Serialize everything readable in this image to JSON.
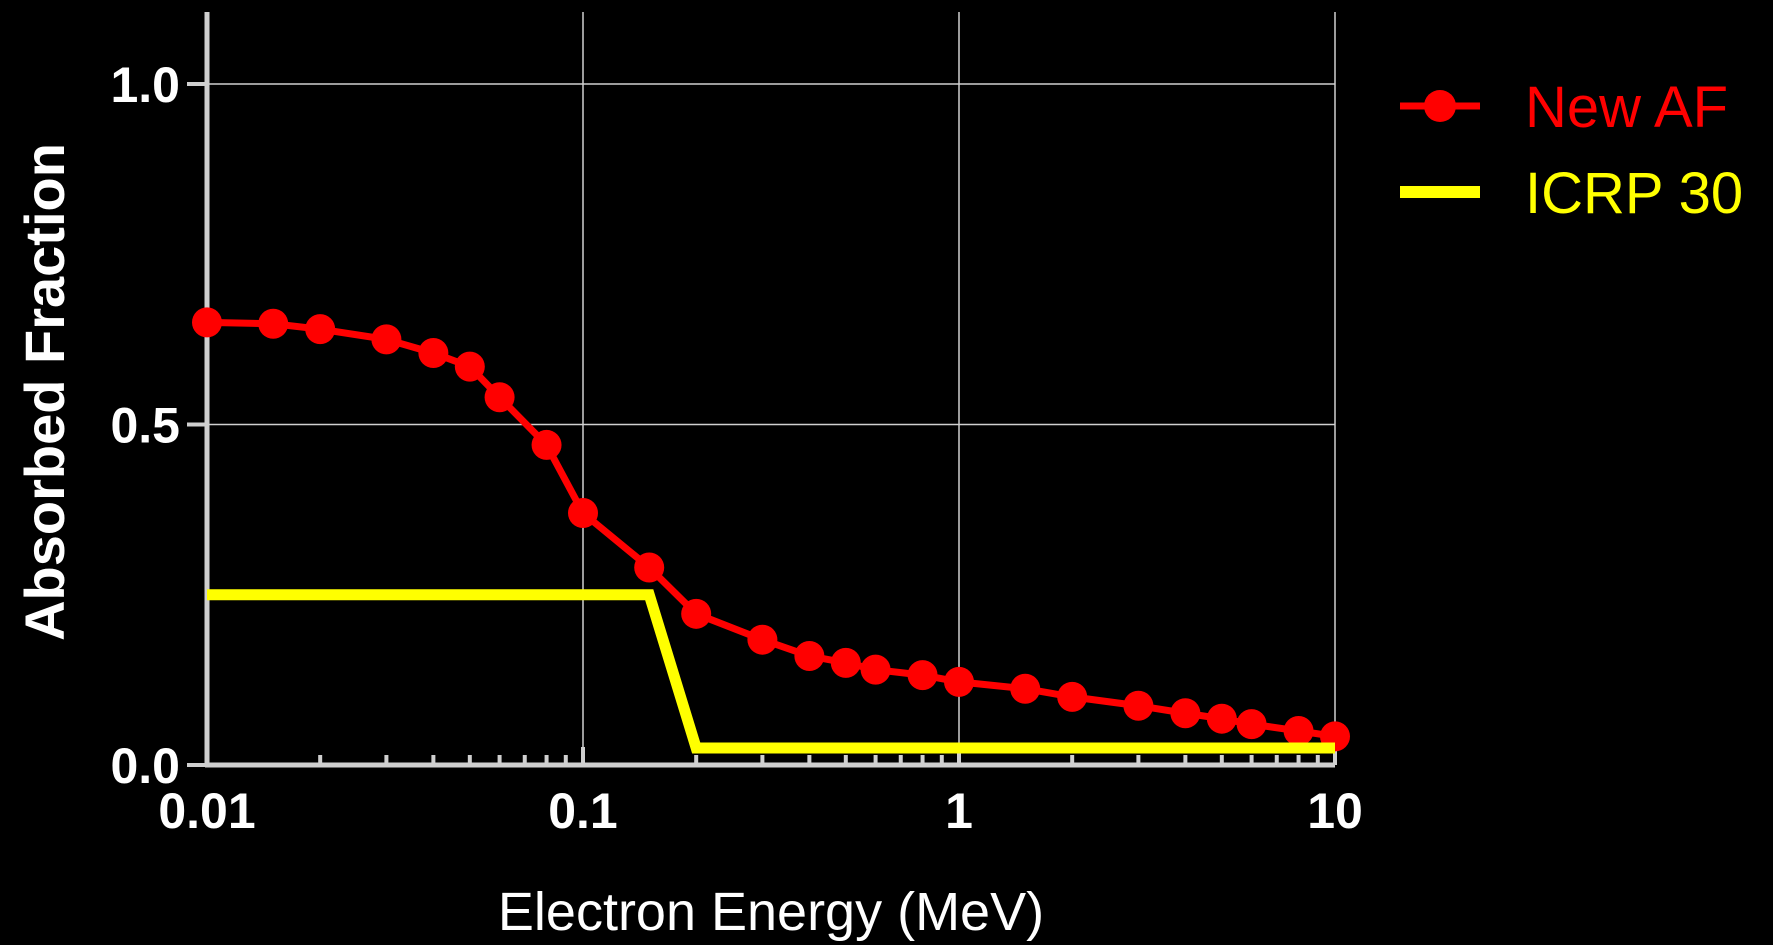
{
  "chart_data": {
    "type": "line",
    "xlabel": "Electron Energy (MeV)",
    "ylabel": "Absorbed Fraction",
    "x_scale": "log",
    "xlim": [
      0.01,
      10
    ],
    "ylim": [
      0.0,
      1.1
    ],
    "x_ticks": [
      "0.01",
      "0.1",
      "1",
      "10"
    ],
    "y_ticks": [
      "0.0",
      "0.5",
      "1.0"
    ],
    "grid": true,
    "legend_position": "right-top",
    "series": [
      {
        "name": "New AF",
        "color": "#ff0000",
        "marker": "circle",
        "x": [
          0.01,
          0.015,
          0.02,
          0.03,
          0.04,
          0.05,
          0.06,
          0.08,
          0.1,
          0.15,
          0.2,
          0.3,
          0.4,
          0.5,
          0.6,
          0.8,
          1,
          1.5,
          2,
          3,
          4,
          5,
          6,
          8,
          10
        ],
        "y": [
          0.65,
          0.648,
          0.64,
          0.625,
          0.605,
          0.585,
          0.54,
          0.47,
          0.37,
          0.29,
          0.222,
          0.184,
          0.16,
          0.15,
          0.14,
          0.132,
          0.122,
          0.112,
          0.1,
          0.087,
          0.076,
          0.068,
          0.06,
          0.05,
          0.042
        ]
      },
      {
        "name": "ICRP 30",
        "color": "#ffff00",
        "marker": "none",
        "x": [
          0.01,
          0.15,
          0.2,
          10
        ],
        "y": [
          0.25,
          0.25,
          0.025,
          0.025
        ]
      }
    ]
  }
}
